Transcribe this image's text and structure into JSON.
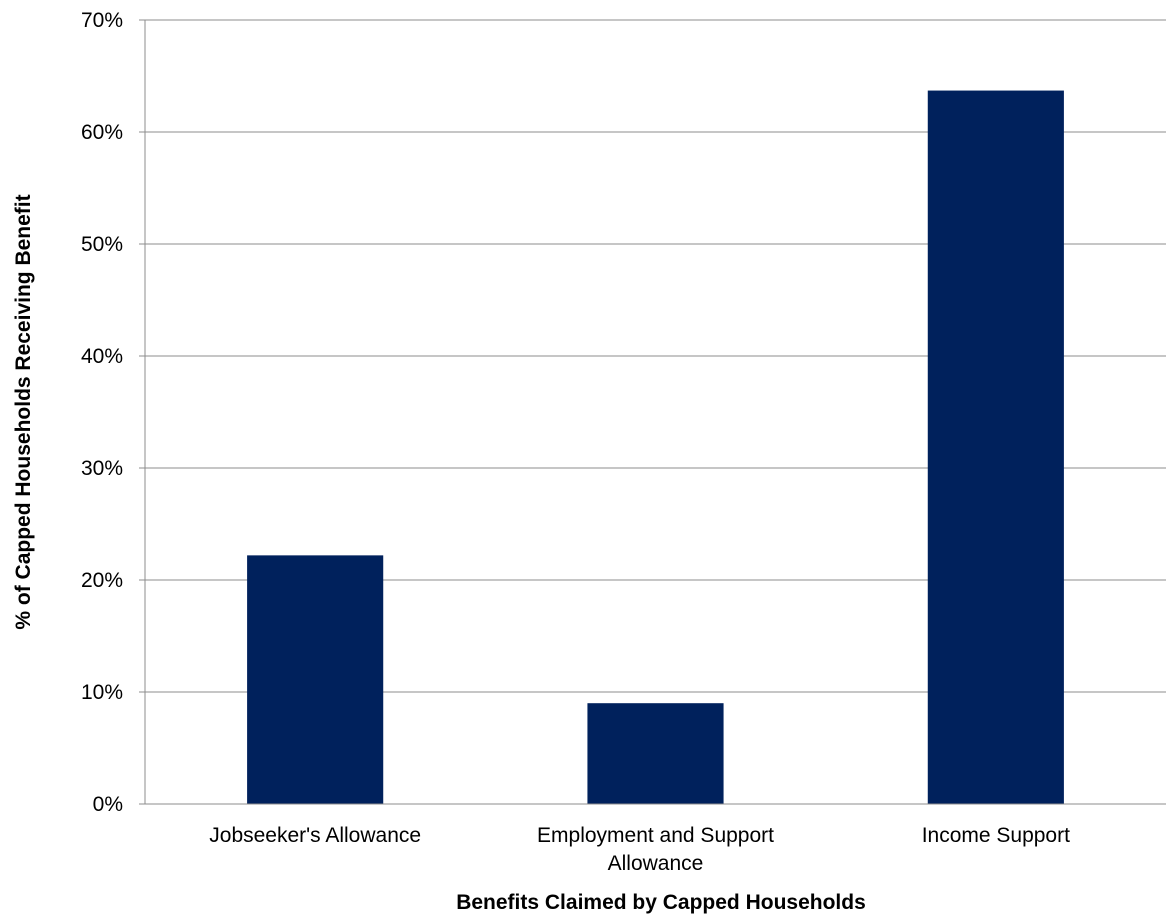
{
  "chart_data": {
    "type": "bar",
    "categories": [
      [
        "Jobseeker's Allowance"
      ],
      [
        "Employment and Support",
        "Allowance"
      ],
      [
        "Income Support"
      ]
    ],
    "values": [
      22.2,
      9.0,
      63.7
    ],
    "xlabel": "Benefits Claimed by Capped Households",
    "ylabel": "% of Capped Households Receiving Benefit",
    "ylim": [
      0,
      70
    ],
    "yticks": [
      0,
      10,
      20,
      30,
      40,
      50,
      60,
      70
    ],
    "ytick_labels": [
      "0%",
      "10%",
      "20%",
      "30%",
      "40%",
      "50%",
      "60%",
      "70%"
    ],
    "grid": true,
    "legend": "none",
    "colors": {
      "bar": "#00215C",
      "grid": "#8C8C8C",
      "axis": "#8C8C8C"
    }
  }
}
